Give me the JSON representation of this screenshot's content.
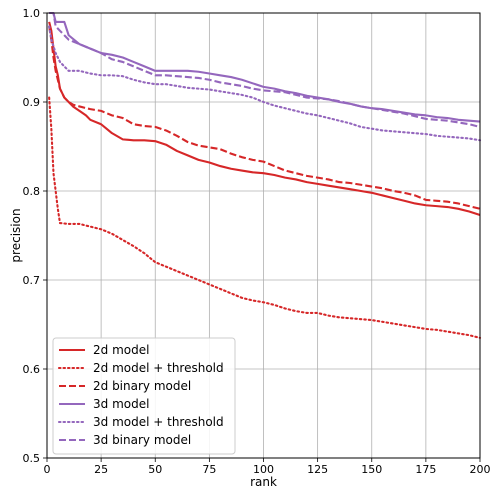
{
  "chart_data": {
    "type": "line",
    "xlabel": "rank",
    "ylabel": "precision",
    "xlim": [
      0,
      200
    ],
    "ylim": [
      0.5,
      1.0
    ],
    "xticks": [
      0,
      25,
      50,
      75,
      100,
      125,
      150,
      175,
      200
    ],
    "yticks": [
      0.5,
      0.6,
      0.7,
      0.8,
      0.9,
      1.0
    ],
    "grid": true,
    "legend_position": "lower-left",
    "series": [
      {
        "name": "2d model",
        "color": "#d62728",
        "style": "solid",
        "points": [
          [
            1,
            0.99
          ],
          [
            2,
            0.98
          ],
          [
            3,
            0.96
          ],
          [
            4,
            0.94
          ],
          [
            5,
            0.93
          ],
          [
            6,
            0.915
          ],
          [
            7,
            0.91
          ],
          [
            8,
            0.905
          ],
          [
            10,
            0.9
          ],
          [
            12,
            0.895
          ],
          [
            15,
            0.89
          ],
          [
            18,
            0.885
          ],
          [
            20,
            0.88
          ],
          [
            25,
            0.875
          ],
          [
            30,
            0.865
          ],
          [
            35,
            0.858
          ],
          [
            40,
            0.857
          ],
          [
            45,
            0.857
          ],
          [
            50,
            0.856
          ],
          [
            55,
            0.852
          ],
          [
            60,
            0.845
          ],
          [
            65,
            0.84
          ],
          [
            70,
            0.835
          ],
          [
            75,
            0.832
          ],
          [
            80,
            0.828
          ],
          [
            85,
            0.825
          ],
          [
            90,
            0.823
          ],
          [
            95,
            0.821
          ],
          [
            100,
            0.82
          ],
          [
            105,
            0.818
          ],
          [
            110,
            0.815
          ],
          [
            115,
            0.813
          ],
          [
            120,
            0.81
          ],
          [
            125,
            0.808
          ],
          [
            130,
            0.806
          ],
          [
            135,
            0.804
          ],
          [
            140,
            0.802
          ],
          [
            145,
            0.8
          ],
          [
            150,
            0.798
          ],
          [
            155,
            0.795
          ],
          [
            160,
            0.792
          ],
          [
            165,
            0.789
          ],
          [
            170,
            0.786
          ],
          [
            175,
            0.784
          ],
          [
            180,
            0.783
          ],
          [
            185,
            0.782
          ],
          [
            190,
            0.78
          ],
          [
            195,
            0.777
          ],
          [
            200,
            0.773
          ]
        ]
      },
      {
        "name": "2d model + threshold",
        "color": "#d62728",
        "style": "dotted",
        "points": [
          [
            1,
            0.905
          ],
          [
            2,
            0.87
          ],
          [
            3,
            0.82
          ],
          [
            4,
            0.8
          ],
          [
            5,
            0.78
          ],
          [
            6,
            0.764
          ],
          [
            10,
            0.763
          ],
          [
            15,
            0.763
          ],
          [
            20,
            0.76
          ],
          [
            25,
            0.757
          ],
          [
            30,
            0.752
          ],
          [
            35,
            0.745
          ],
          [
            40,
            0.738
          ],
          [
            45,
            0.73
          ],
          [
            50,
            0.72
          ],
          [
            55,
            0.715
          ],
          [
            60,
            0.71
          ],
          [
            65,
            0.705
          ],
          [
            70,
            0.7
          ],
          [
            75,
            0.695
          ],
          [
            80,
            0.69
          ],
          [
            85,
            0.685
          ],
          [
            90,
            0.68
          ],
          [
            95,
            0.677
          ],
          [
            100,
            0.675
          ],
          [
            105,
            0.672
          ],
          [
            110,
            0.668
          ],
          [
            115,
            0.665
          ],
          [
            120,
            0.663
          ],
          [
            125,
            0.663
          ],
          [
            130,
            0.66
          ],
          [
            135,
            0.658
          ],
          [
            140,
            0.657
          ],
          [
            145,
            0.656
          ],
          [
            150,
            0.655
          ],
          [
            155,
            0.653
          ],
          [
            160,
            0.651
          ],
          [
            165,
            0.649
          ],
          [
            170,
            0.647
          ],
          [
            175,
            0.645
          ],
          [
            180,
            0.644
          ],
          [
            185,
            0.642
          ],
          [
            190,
            0.64
          ],
          [
            195,
            0.638
          ],
          [
            200,
            0.635
          ]
        ]
      },
      {
        "name": "2d binary model",
        "color": "#d62728",
        "style": "dashed",
        "points": [
          [
            1,
            0.985
          ],
          [
            2,
            0.97
          ],
          [
            3,
            0.95
          ],
          [
            4,
            0.935
          ],
          [
            5,
            0.925
          ],
          [
            6,
            0.915
          ],
          [
            7,
            0.91
          ],
          [
            8,
            0.905
          ],
          [
            10,
            0.9
          ],
          [
            12,
            0.897
          ],
          [
            15,
            0.895
          ],
          [
            20,
            0.892
          ],
          [
            25,
            0.89
          ],
          [
            30,
            0.885
          ],
          [
            35,
            0.882
          ],
          [
            40,
            0.875
          ],
          [
            45,
            0.873
          ],
          [
            50,
            0.872
          ],
          [
            55,
            0.868
          ],
          [
            60,
            0.862
          ],
          [
            65,
            0.855
          ],
          [
            70,
            0.851
          ],
          [
            75,
            0.849
          ],
          [
            80,
            0.847
          ],
          [
            85,
            0.842
          ],
          [
            90,
            0.838
          ],
          [
            95,
            0.835
          ],
          [
            100,
            0.833
          ],
          [
            105,
            0.828
          ],
          [
            110,
            0.823
          ],
          [
            115,
            0.82
          ],
          [
            120,
            0.817
          ],
          [
            125,
            0.815
          ],
          [
            130,
            0.813
          ],
          [
            135,
            0.81
          ],
          [
            140,
            0.809
          ],
          [
            145,
            0.807
          ],
          [
            150,
            0.805
          ],
          [
            155,
            0.803
          ],
          [
            160,
            0.8
          ],
          [
            165,
            0.798
          ],
          [
            170,
            0.795
          ],
          [
            175,
            0.79
          ],
          [
            180,
            0.789
          ],
          [
            185,
            0.788
          ],
          [
            190,
            0.786
          ],
          [
            195,
            0.783
          ],
          [
            200,
            0.78
          ]
        ]
      },
      {
        "name": "3d model",
        "color": "#9467bd",
        "style": "solid",
        "points": [
          [
            1,
            1.0
          ],
          [
            3,
            1.0
          ],
          [
            4,
            0.99
          ],
          [
            8,
            0.99
          ],
          [
            10,
            0.975
          ],
          [
            15,
            0.965
          ],
          [
            20,
            0.96
          ],
          [
            25,
            0.955
          ],
          [
            30,
            0.953
          ],
          [
            35,
            0.95
          ],
          [
            40,
            0.945
          ],
          [
            45,
            0.94
          ],
          [
            50,
            0.935
          ],
          [
            55,
            0.935
          ],
          [
            60,
            0.935
          ],
          [
            65,
            0.935
          ],
          [
            70,
            0.934
          ],
          [
            75,
            0.932
          ],
          [
            80,
            0.93
          ],
          [
            85,
            0.928
          ],
          [
            90,
            0.925
          ],
          [
            95,
            0.921
          ],
          [
            100,
            0.917
          ],
          [
            105,
            0.915
          ],
          [
            110,
            0.912
          ],
          [
            115,
            0.91
          ],
          [
            120,
            0.907
          ],
          [
            125,
            0.905
          ],
          [
            130,
            0.903
          ],
          [
            135,
            0.9
          ],
          [
            140,
            0.898
          ],
          [
            145,
            0.895
          ],
          [
            150,
            0.893
          ],
          [
            155,
            0.892
          ],
          [
            160,
            0.89
          ],
          [
            165,
            0.888
          ],
          [
            170,
            0.886
          ],
          [
            175,
            0.885
          ],
          [
            180,
            0.883
          ],
          [
            185,
            0.882
          ],
          [
            190,
            0.88
          ],
          [
            195,
            0.879
          ],
          [
            200,
            0.878
          ]
        ]
      },
      {
        "name": "3d model + threshold",
        "color": "#9467bd",
        "style": "dotted",
        "points": [
          [
            1,
            0.985
          ],
          [
            2,
            0.97
          ],
          [
            4,
            0.955
          ],
          [
            6,
            0.945
          ],
          [
            8,
            0.94
          ],
          [
            10,
            0.935
          ],
          [
            15,
            0.935
          ],
          [
            20,
            0.932
          ],
          [
            25,
            0.93
          ],
          [
            30,
            0.93
          ],
          [
            35,
            0.929
          ],
          [
            40,
            0.925
          ],
          [
            45,
            0.922
          ],
          [
            50,
            0.92
          ],
          [
            55,
            0.92
          ],
          [
            60,
            0.918
          ],
          [
            65,
            0.916
          ],
          [
            70,
            0.915
          ],
          [
            75,
            0.914
          ],
          [
            80,
            0.912
          ],
          [
            85,
            0.91
          ],
          [
            90,
            0.908
          ],
          [
            95,
            0.905
          ],
          [
            100,
            0.9
          ],
          [
            105,
            0.896
          ],
          [
            110,
            0.893
          ],
          [
            115,
            0.89
          ],
          [
            120,
            0.887
          ],
          [
            125,
            0.885
          ],
          [
            130,
            0.882
          ],
          [
            135,
            0.879
          ],
          [
            140,
            0.876
          ],
          [
            145,
            0.872
          ],
          [
            150,
            0.87
          ],
          [
            155,
            0.868
          ],
          [
            160,
            0.867
          ],
          [
            165,
            0.866
          ],
          [
            170,
            0.865
          ],
          [
            175,
            0.864
          ],
          [
            180,
            0.862
          ],
          [
            185,
            0.861
          ],
          [
            190,
            0.86
          ],
          [
            195,
            0.859
          ],
          [
            200,
            0.857
          ]
        ]
      },
      {
        "name": "3d binary model",
        "color": "#9467bd",
        "style": "dashed",
        "points": [
          [
            1,
            1.0
          ],
          [
            3,
            1.0
          ],
          [
            4,
            0.985
          ],
          [
            6,
            0.98
          ],
          [
            8,
            0.975
          ],
          [
            10,
            0.97
          ],
          [
            15,
            0.965
          ],
          [
            20,
            0.96
          ],
          [
            25,
            0.955
          ],
          [
            30,
            0.948
          ],
          [
            35,
            0.945
          ],
          [
            40,
            0.94
          ],
          [
            45,
            0.935
          ],
          [
            50,
            0.93
          ],
          [
            55,
            0.93
          ],
          [
            60,
            0.929
          ],
          [
            65,
            0.928
          ],
          [
            70,
            0.927
          ],
          [
            75,
            0.925
          ],
          [
            80,
            0.922
          ],
          [
            85,
            0.92
          ],
          [
            90,
            0.918
          ],
          [
            95,
            0.915
          ],
          [
            100,
            0.913
          ],
          [
            105,
            0.912
          ],
          [
            110,
            0.911
          ],
          [
            115,
            0.908
          ],
          [
            120,
            0.905
          ],
          [
            125,
            0.904
          ],
          [
            130,
            0.903
          ],
          [
            135,
            0.901
          ],
          [
            140,
            0.898
          ],
          [
            145,
            0.895
          ],
          [
            150,
            0.893
          ],
          [
            155,
            0.891
          ],
          [
            160,
            0.889
          ],
          [
            165,
            0.887
          ],
          [
            170,
            0.884
          ],
          [
            175,
            0.881
          ],
          [
            180,
            0.88
          ],
          [
            185,
            0.879
          ],
          [
            190,
            0.877
          ],
          [
            195,
            0.875
          ],
          [
            200,
            0.872
          ]
        ]
      }
    ]
  }
}
